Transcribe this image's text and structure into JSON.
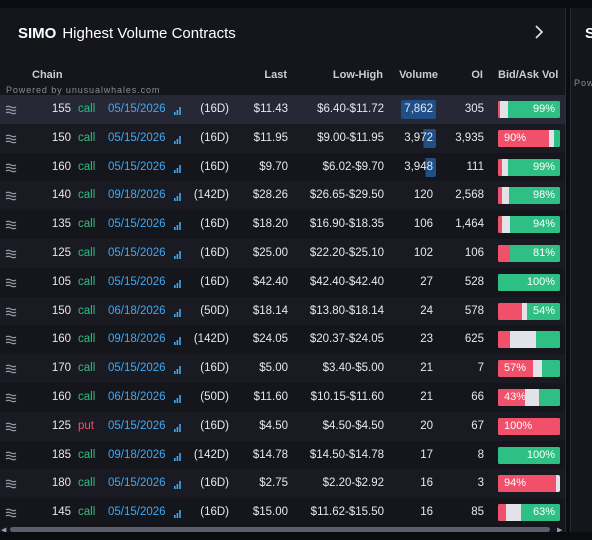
{
  "panel": {
    "symbol": "SIMO",
    "title": "Highest Volume Contracts",
    "powered_by": "Powered by unusualwhales.com"
  },
  "columns": {
    "chain": "Chain",
    "last": "Last",
    "low_high": "Low-High",
    "volume": "Volume",
    "oi": "OI",
    "bid_ask": "Bid/Ask Vol"
  },
  "next_panel": {
    "title_fragment": "S",
    "powered_fragment": "Pow"
  },
  "colors": {
    "call": "#2dbf83",
    "put": "#ff4d5a",
    "expiry": "#3fa9f5",
    "ask_red": "#f0506a",
    "bid_green": "#2dbf83",
    "mid_gray": "#e2e3e8",
    "volume_highlight": "#1f4f86"
  },
  "rows": [
    {
      "strike": "155",
      "type": "call",
      "expiry": "05/15/2026",
      "dte": "(16D)",
      "last": "$11.43",
      "low_high": "$6.40-$11.72",
      "volume": "7,862",
      "vol_fill": 1.0,
      "oi": "305",
      "ask_pct": 0.04,
      "bid_pct": 0.84,
      "label": "99%",
      "label_side": "right",
      "selected": true
    },
    {
      "strike": "150",
      "type": "call",
      "expiry": "05/15/2026",
      "dte": "(16D)",
      "last": "$11.95",
      "low_high": "$9.00-$11.95",
      "volume": "3,972",
      "vol_fill": 0.35,
      "oi": "3,935",
      "ask_pct": 0.82,
      "bid_pct": 0.09,
      "label": "90%",
      "label_side": "left",
      "selected": false
    },
    {
      "strike": "160",
      "type": "call",
      "expiry": "05/15/2026",
      "dte": "(16D)",
      "last": "$9.70",
      "low_high": "$6.02-$9.70",
      "volume": "3,948",
      "vol_fill": 0.3,
      "oi": "111",
      "ask_pct": 0.06,
      "bid_pct": 0.84,
      "label": "99%",
      "label_side": "right",
      "selected": false
    },
    {
      "strike": "140",
      "type": "call",
      "expiry": "09/18/2026",
      "dte": "(142D)",
      "last": "$28.26",
      "low_high": "$26.65-$29.50",
      "volume": "120",
      "vol_fill": 0,
      "oi": "2,568",
      "ask_pct": 0.06,
      "bid_pct": 0.82,
      "label": "98%",
      "label_side": "right",
      "selected": false
    },
    {
      "strike": "135",
      "type": "call",
      "expiry": "05/15/2026",
      "dte": "(16D)",
      "last": "$18.20",
      "low_high": "$16.90-$18.35",
      "volume": "106",
      "vol_fill": 0,
      "oi": "1,464",
      "ask_pct": 0.06,
      "bid_pct": 0.8,
      "label": "94%",
      "label_side": "right",
      "selected": false
    },
    {
      "strike": "125",
      "type": "call",
      "expiry": "05/15/2026",
      "dte": "(16D)",
      "last": "$25.00",
      "low_high": "$22.20-$25.10",
      "volume": "102",
      "vol_fill": 0,
      "oi": "106",
      "ask_pct": 0.2,
      "bid_pct": 0.8,
      "label": "81%",
      "label_side": "right",
      "selected": false
    },
    {
      "strike": "105",
      "type": "call",
      "expiry": "05/15/2026",
      "dte": "(16D)",
      "last": "$42.40",
      "low_high": "$42.40-$42.40",
      "volume": "27",
      "vol_fill": 0,
      "oi": "528",
      "ask_pct": 0,
      "bid_pct": 1.0,
      "label": "100%",
      "label_side": "right",
      "selected": false
    },
    {
      "strike": "150",
      "type": "call",
      "expiry": "06/18/2026",
      "dte": "(50D)",
      "last": "$18.14",
      "low_high": "$13.80-$18.14",
      "volume": "24",
      "vol_fill": 0,
      "oi": "578",
      "ask_pct": 0.38,
      "bid_pct": 0.54,
      "label": "54%",
      "label_side": "right",
      "selected": false
    },
    {
      "strike": "160",
      "type": "call",
      "expiry": "09/18/2026",
      "dte": "(142D)",
      "last": "$24.05",
      "low_high": "$20.37-$24.05",
      "volume": "23",
      "vol_fill": 0,
      "oi": "625",
      "ask_pct": 0.2,
      "bid_pct": 0.38,
      "label": "",
      "label_side": "right",
      "selected": false
    },
    {
      "strike": "170",
      "type": "call",
      "expiry": "05/15/2026",
      "dte": "(16D)",
      "last": "$5.00",
      "low_high": "$3.40-$5.00",
      "volume": "21",
      "vol_fill": 0,
      "oi": "7",
      "ask_pct": 0.57,
      "bid_pct": 0.29,
      "label": "57%",
      "label_side": "left",
      "selected": false
    },
    {
      "strike": "160",
      "type": "call",
      "expiry": "06/18/2026",
      "dte": "(50D)",
      "last": "$11.60",
      "low_high": "$10.15-$11.60",
      "volume": "21",
      "vol_fill": 0,
      "oi": "66",
      "ask_pct": 0.43,
      "bid_pct": 0.34,
      "label": "43%",
      "label_side": "left",
      "selected": false
    },
    {
      "strike": "125",
      "type": "put",
      "expiry": "05/15/2026",
      "dte": "(16D)",
      "last": "$4.50",
      "low_high": "$4.50-$4.50",
      "volume": "20",
      "vol_fill": 0,
      "oi": "67",
      "ask_pct": 1.0,
      "bid_pct": 0,
      "label": "100%",
      "label_side": "left",
      "selected": false
    },
    {
      "strike": "185",
      "type": "call",
      "expiry": "09/18/2026",
      "dte": "(142D)",
      "last": "$14.78",
      "low_high": "$14.50-$14.78",
      "volume": "17",
      "vol_fill": 0,
      "oi": "8",
      "ask_pct": 0,
      "bid_pct": 1.0,
      "label": "100%",
      "label_side": "right",
      "selected": false
    },
    {
      "strike": "180",
      "type": "call",
      "expiry": "05/15/2026",
      "dte": "(16D)",
      "last": "$2.75",
      "low_high": "$2.20-$2.92",
      "volume": "16",
      "vol_fill": 0,
      "oi": "3",
      "ask_pct": 0.94,
      "bid_pct": 0,
      "label": "94%",
      "label_side": "left",
      "selected": false
    },
    {
      "strike": "145",
      "type": "call",
      "expiry": "05/15/2026",
      "dte": "(16D)",
      "last": "$15.00",
      "low_high": "$11.62-$15.50",
      "volume": "16",
      "vol_fill": 0,
      "oi": "85",
      "ask_pct": 0.13,
      "bid_pct": 0.63,
      "label": "63%",
      "label_side": "right",
      "selected": false
    }
  ]
}
